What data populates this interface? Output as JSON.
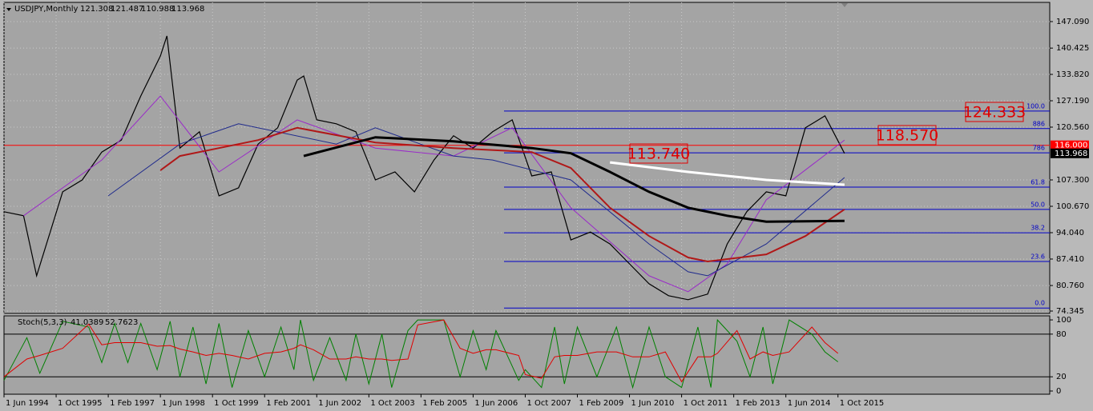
{
  "chart_data": [
    {
      "type": "line",
      "title": "USDJPY,Monthly",
      "ohlc": [
        121.308,
        121.487,
        110.988,
        113.968
      ],
      "xlim": [
        "1994-06",
        "2021-03"
      ],
      "ylim": [
        73.74,
        151.91
      ],
      "xticks": [
        {
          "value": "1994-06",
          "label": "1 Jun 1994"
        },
        {
          "value": "1995-10",
          "label": "1 Oct 1995"
        },
        {
          "value": "1997-02",
          "label": "1 Feb 1997"
        },
        {
          "value": "1998-06",
          "label": "1 Jun 1998"
        },
        {
          "value": "1999-10",
          "label": "1 Oct 1999"
        },
        {
          "value": "2001-02",
          "label": "1 Feb 2001"
        },
        {
          "value": "2002-06",
          "label": "1 Jun 2002"
        },
        {
          "value": "2003-10",
          "label": "1 Oct 2003"
        },
        {
          "value": "2005-02",
          "label": "1 Feb 2005"
        },
        {
          "value": "2006-06",
          "label": "1 Jun 2006"
        },
        {
          "value": "2007-10",
          "label": "1 Oct 2007"
        },
        {
          "value": "2009-02",
          "label": "1 Feb 2009"
        },
        {
          "value": "2010-06",
          "label": "1 Jun 2010"
        },
        {
          "value": "2011-10",
          "label": "1 Oct 2011"
        },
        {
          "value": "2013-02",
          "label": "1 Feb 2013"
        },
        {
          "value": "2014-06",
          "label": "1 Jun 2014"
        },
        {
          "value": "2015-10",
          "label": "1 Oct 2015"
        }
      ],
      "yticks": [
        {
          "value": 147.09,
          "label": "147.090"
        },
        140.425,
        {
          "value": 133.82,
          "label": "133.820"
        },
        {
          "value": 127.19,
          "label": "127.190"
        },
        {
          "value": 120.56,
          "label": "120.560"
        },
        {
          "value": 107.3,
          "label": "107.300"
        },
        {
          "value": 100.67,
          "label": "100.670"
        },
        {
          "value": 94.04,
          "label": "94.040"
        },
        {
          "value": 87.41,
          "label": "87.410"
        },
        {
          "value": 80.76,
          "label": "80.760"
        },
        74.345
      ],
      "grid": true,
      "series": [
        {
          "color": "#000000",
          "width": 1.2,
          "x": [
            "1994-06",
            "1994-12",
            "1995-04",
            "1995-12",
            "1996-06",
            "1996-12",
            "1997-06",
            "1997-12",
            "1998-06",
            "1998-08",
            "1998-12",
            "1999-06",
            "1999-12",
            "2000-06",
            "2000-12",
            "2001-06",
            "2001-12",
            "2002-02",
            "2002-06",
            "2002-12",
            "2003-06",
            "2003-12",
            "2004-06",
            "2004-12",
            "2005-06",
            "2005-12",
            "2006-06",
            "2006-12",
            "2007-06",
            "2007-12",
            "2008-06",
            "2008-12",
            "2009-06",
            "2009-12",
            "2010-06",
            "2010-12",
            "2011-06",
            "2011-12",
            "2012-06",
            "2012-12",
            "2013-06",
            "2013-12",
            "2014-06",
            "2014-12",
            "2015-06",
            "2015-12"
          ],
          "values": [
            99.3,
            98.3,
            83.2,
            104.3,
            107.3,
            114.3,
            117.3,
            128.4,
            138.4,
            143.5,
            115.3,
            119.4,
            103.3,
            105.3,
            116.3,
            120.4,
            132.4,
            133.4,
            122.4,
            121.4,
            119.4,
            107.3,
            109.3,
            104.3,
            112.3,
            118.4,
            115.3,
            119.4,
            122.4,
            108.3,
            109.3,
            92.2,
            94.2,
            91.2,
            86.2,
            81.2,
            78.2,
            77.2,
            78.6,
            91.2,
            99.3,
            104.3,
            103.3,
            120.4,
            123.4,
            113.968
          ]
        },
        {
          "color": "#9a2bc8",
          "width": 1,
          "x": [
            "1994-12",
            "1996-12",
            "1998-06",
            "1999-12",
            "2001-12",
            "2003-12",
            "2005-12",
            "2007-06",
            "2008-12",
            "2010-12",
            "2011-12",
            "2012-12",
            "2013-12",
            "2015-12"
          ],
          "values": [
            98.3,
            112.3,
            128.4,
            109.3,
            122.4,
            115.3,
            113.3,
            120.4,
            100.3,
            83.2,
            79.2,
            86.2,
            102.3,
            117.3
          ]
        },
        {
          "color": "#1f2a8c",
          "width": 1,
          "x": [
            "1997-02",
            "1998-12",
            "2000-06",
            "2002-12",
            "2003-12",
            "2005-12",
            "2006-12",
            "2008-12",
            "2010-12",
            "2011-12",
            "2012-06",
            "2013-12",
            "2015-12"
          ],
          "values": [
            103.3,
            116.3,
            121.4,
            116.3,
            120.4,
            113.3,
            112.3,
            107.3,
            91.2,
            84.2,
            83.2,
            91.2,
            107.9
          ]
        },
        {
          "color": "#b01818",
          "width": 2,
          "x": [
            "1998-06",
            "1998-12",
            "2000-12",
            "2001-12",
            "2003-12",
            "2005-12",
            "2007-12",
            "2008-12",
            "2009-12",
            "2010-12",
            "2011-12",
            "2012-06",
            "2013-12",
            "2014-12",
            "2015-12"
          ],
          "values": [
            109.7,
            113.3,
            117.3,
            120.4,
            116.7,
            115.3,
            114.3,
            110.3,
            100.3,
            93.2,
            87.8,
            86.8,
            88.6,
            93.2,
            99.9
          ]
        },
        {
          "color": "#000000",
          "width": 3,
          "x": [
            "2002-02",
            "2003-12",
            "2005-12",
            "2007-12",
            "2008-12",
            "2009-12",
            "2010-12",
            "2011-12",
            "2012-12",
            "2013-12",
            "2015-12"
          ],
          "values": [
            113.3,
            118.0,
            117.0,
            115.3,
            114.0,
            109.3,
            104.3,
            100.3,
            98.3,
            96.8,
            97.0
          ]
        },
        {
          "color": "#ffffff",
          "width": 3,
          "x": [
            "2009-12",
            "2011-12",
            "2013-12",
            "2015-12"
          ],
          "values": [
            111.7,
            109.3,
            107.3,
            106.1
          ]
        }
      ],
      "fib_levels": [
        {
          "label": "100.0",
          "value": 124.6
        },
        {
          "label": "886",
          "value": 120.2
        },
        {
          "label": "786",
          "value": 114.1
        },
        {
          "label": "61.8",
          "value": 105.5
        },
        {
          "label": "50.0",
          "value": 99.9
        },
        {
          "label": "38.2",
          "value": 94.0
        },
        {
          "label": "23.6",
          "value": 86.8
        },
        {
          "label": "0.0",
          "value": 75.1
        }
      ],
      "fib_color": "#0000c8",
      "price_line": {
        "value": 116.0,
        "label": "116.000",
        "color": "#ff0000"
      },
      "current_price": {
        "value": 113.968,
        "label": "113.968"
      },
      "annotations": [
        "124.333",
        "118.570",
        "113.740"
      ]
    },
    {
      "type": "line",
      "title": "Stoch(5,3,3)",
      "readings": [
        41.0389,
        52.7623
      ],
      "xlim": [
        "1994-06",
        "2021-03"
      ],
      "ylim": [
        -4.5,
        105.7
      ],
      "yticks": [
        100,
        80,
        20,
        0
      ],
      "levels": [
        80,
        20
      ],
      "series": [
        {
          "color": "#008000",
          "x": [
            "1994-06",
            "1995-01",
            "1995-05",
            "1995-12",
            "1996-08",
            "1996-12",
            "1997-04",
            "1997-08",
            "1997-12",
            "1998-05",
            "1998-09",
            "1998-12",
            "1999-04",
            "1999-08",
            "1999-12",
            "2000-04",
            "2000-09",
            "2001-02",
            "2001-07",
            "2001-11",
            "2002-01",
            "2002-05",
            "2002-10",
            "2003-03",
            "2003-06",
            "2003-10",
            "2004-02",
            "2004-05",
            "2004-10",
            "2005-01",
            "2005-09",
            "2006-02",
            "2006-06",
            "2006-10",
            "2007-01",
            "2007-08",
            "2007-10",
            "2008-03",
            "2008-07",
            "2008-10",
            "2009-02",
            "2009-08",
            "2010-02",
            "2010-07",
            "2010-12",
            "2011-05",
            "2011-10",
            "2012-03",
            "2012-07",
            "2012-09",
            "2013-03",
            "2013-07",
            "2013-11",
            "2014-02",
            "2014-07",
            "2015-02",
            "2015-06",
            "2015-10"
          ],
          "values": [
            15,
            75,
            25,
            98,
            90,
            40,
            95,
            40,
            95,
            30,
            98,
            20,
            90,
            10,
            95,
            5,
            85,
            20,
            90,
            30,
            100,
            15,
            75,
            15,
            80,
            10,
            80,
            5,
            85,
            100,
            100,
            20,
            85,
            30,
            85,
            15,
            30,
            5,
            90,
            10,
            90,
            20,
            90,
            5,
            90,
            20,
            5,
            90,
            5,
            100,
            70,
            20,
            90,
            10,
            100,
            80,
            55,
            41
          ]
        },
        {
          "color": "#e00000",
          "x": [
            "1994-06",
            "1995-01",
            "1995-05",
            "1995-12",
            "1996-08",
            "1996-12",
            "1997-04",
            "1997-08",
            "1997-12",
            "1998-05",
            "1998-09",
            "1998-12",
            "1999-04",
            "1999-08",
            "1999-12",
            "2000-04",
            "2000-09",
            "2001-02",
            "2001-07",
            "2001-11",
            "2002-01",
            "2002-05",
            "2002-10",
            "2003-03",
            "2003-06",
            "2003-10",
            "2004-02",
            "2004-05",
            "2004-10",
            "2005-01",
            "2005-09",
            "2006-02",
            "2006-06",
            "2006-10",
            "2007-01",
            "2007-08",
            "2007-10",
            "2008-03",
            "2008-07",
            "2008-10",
            "2009-02",
            "2009-08",
            "2010-02",
            "2010-07",
            "2010-12",
            "2011-05",
            "2011-10",
            "2012-03",
            "2012-07",
            "2012-09",
            "2013-03",
            "2013-07",
            "2013-11",
            "2014-02",
            "2014-07",
            "2015-02",
            "2015-06",
            "2015-10"
          ],
          "values": [
            20,
            45,
            50,
            60,
            94,
            65,
            68,
            68,
            68,
            63,
            64,
            59,
            55,
            50,
            53,
            50,
            45,
            53,
            55,
            60,
            65,
            58,
            45,
            45,
            48,
            45,
            45,
            43,
            45,
            93,
            100,
            60,
            53,
            58,
            58,
            50,
            23,
            18,
            48,
            50,
            50,
            55,
            55,
            48,
            48,
            55,
            13,
            48,
            48,
            53,
            85,
            45,
            55,
            50,
            55,
            90,
            68,
            53
          ]
        }
      ]
    }
  ]
}
